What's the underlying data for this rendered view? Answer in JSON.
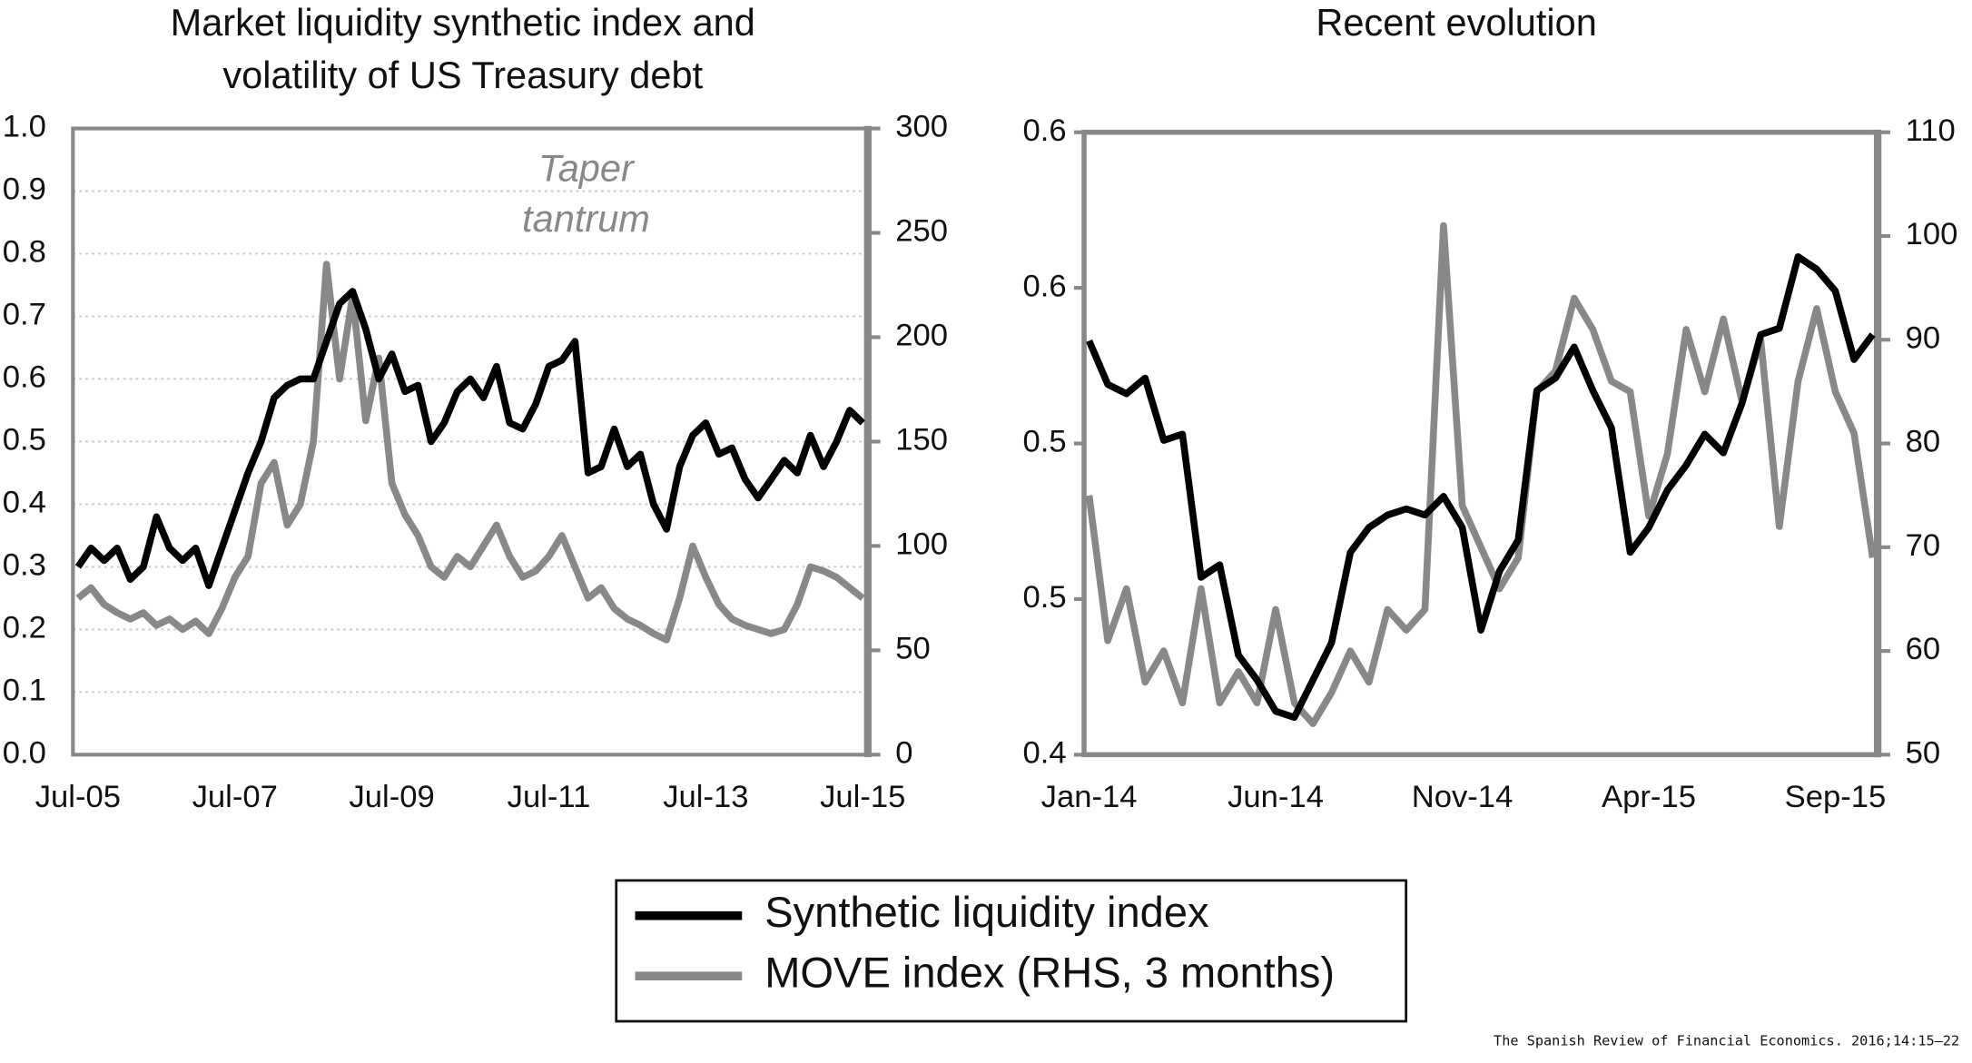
{
  "chart_data": [
    {
      "type": "line",
      "title": [
        "Market liquidity synthetic index and",
        "volatility of US Treasury debt"
      ],
      "annotation": [
        "Taper",
        "tantrum"
      ],
      "categories": [
        "Jul-05",
        null,
        null,
        null,
        null,
        null,
        null,
        null,
        null,
        null,
        null,
        null,
        "Jul-07",
        null,
        null,
        null,
        null,
        null,
        null,
        null,
        null,
        null,
        null,
        null,
        "Jul-09",
        null,
        null,
        null,
        null,
        null,
        null,
        null,
        null,
        null,
        null,
        null,
        "Jul-11",
        null,
        null,
        null,
        null,
        null,
        null,
        null,
        null,
        null,
        null,
        null,
        "Jul-13",
        null,
        null,
        null,
        null,
        null,
        null,
        null,
        null,
        null,
        null,
        null,
        "Jul-15"
      ],
      "series": [
        {
          "name": "Synthetic liquidity index",
          "color": "#000000",
          "values": [
            0.3,
            0.33,
            0.31,
            0.33,
            0.28,
            0.3,
            0.38,
            0.33,
            0.31,
            0.33,
            0.27,
            0.33,
            0.39,
            0.45,
            0.5,
            0.57,
            0.59,
            0.6,
            0.6,
            0.66,
            0.72,
            0.74,
            0.68,
            0.6,
            0.64,
            0.58,
            0.59,
            0.5,
            0.53,
            0.58,
            0.6,
            0.57,
            0.62,
            0.53,
            0.52,
            0.56,
            0.62,
            0.63,
            0.66,
            0.45,
            0.46,
            0.52,
            0.46,
            0.48,
            0.4,
            0.36,
            0.46,
            0.51,
            0.53,
            0.48,
            0.49,
            0.44,
            0.41,
            0.44,
            0.47,
            0.45,
            0.51,
            0.46,
            0.5,
            0.55,
            0.53
          ]
        },
        {
          "name": "MOVE index (RHS, 3 months)",
          "color": "#888888",
          "axis": "y2",
          "values": [
            75,
            80,
            72,
            68,
            65,
            68,
            62,
            65,
            60,
            64,
            58,
            70,
            85,
            95,
            130,
            140,
            110,
            120,
            150,
            235,
            180,
            220,
            160,
            190,
            130,
            115,
            105,
            90,
            85,
            95,
            90,
            100,
            110,
            95,
            85,
            88,
            95,
            105,
            90,
            75,
            80,
            70,
            65,
            62,
            58,
            55,
            75,
            100,
            85,
            72,
            65,
            62,
            60,
            58,
            60,
            72,
            90,
            88,
            85,
            80,
            75
          ]
        }
      ],
      "ylim": [
        0,
        1.0
      ],
      "yticks": [
        {
          "value": 0,
          "label": "0.0"
        },
        0.1,
        0.2,
        0.3,
        0.4,
        0.5,
        0.6,
        0.7,
        0.8,
        0.9,
        {
          "value": 1.0,
          "label": "1.0"
        }
      ],
      "y2lim": [
        0,
        300
      ],
      "y2ticks": [
        0,
        50,
        100,
        150,
        200,
        250,
        300
      ],
      "grid": true
    },
    {
      "type": "line",
      "title": [
        "Recent evolution"
      ],
      "categories": [
        "Jan-14",
        null,
        null,
        null,
        null,
        null,
        null,
        null,
        null,
        null,
        "Jun-14",
        null,
        null,
        null,
        null,
        null,
        null,
        null,
        null,
        null,
        "Nov-14",
        null,
        null,
        null,
        null,
        null,
        null,
        null,
        null,
        null,
        "Apr-15",
        null,
        null,
        null,
        null,
        null,
        null,
        null,
        null,
        null,
        "Sep-15",
        null,
        null
      ],
      "series": [
        {
          "color": "#000000",
          "values": [
            0.533,
            0.519,
            0.516,
            0.521,
            0.501,
            0.503,
            0.457,
            0.461,
            0.432,
            0.424,
            0.414,
            0.412,
            0.424,
            0.436,
            0.465,
            0.473,
            0.477,
            0.479,
            0.477,
            0.483,
            0.473,
            0.44,
            0.459,
            0.469,
            0.517,
            0.521,
            0.531,
            0.517,
            0.505,
            0.465,
            0.473,
            0.485,
            0.493,
            0.503,
            0.497,
            0.513,
            0.535,
            0.537,
            0.56,
            0.556,
            0.549,
            0.527,
            0.535
          ]
        },
        {
          "color": "#888888",
          "axis": "y2",
          "values": [
            75,
            61,
            66,
            57,
            60,
            55,
            66,
            55,
            58,
            55,
            64,
            55,
            53,
            56,
            60,
            57,
            64,
            62,
            64,
            101,
            74,
            70,
            66,
            69,
            85,
            87,
            94,
            91,
            86,
            85,
            73,
            79,
            91,
            85,
            92,
            84,
            90,
            72,
            86,
            93,
            85,
            81,
            69
          ]
        }
      ],
      "ylim": [
        0.4,
        0.6
      ],
      "yticks": [
        {
          "value": 0.4,
          "label": "0.4"
        },
        {
          "value": 0.45,
          "label": "0.5"
        },
        {
          "value": 0.5,
          "label": "0.5"
        },
        {
          "value": 0.55,
          "label": "0.6"
        },
        {
          "value": 0.6,
          "label": "0.6"
        }
      ],
      "y2lim": [
        50,
        110
      ],
      "y2ticks": [
        50,
        60,
        70,
        80,
        90,
        100,
        110
      ],
      "grid": false
    }
  ],
  "source": "The Spanish Review of Financial Economics. 2016;14:15–22"
}
